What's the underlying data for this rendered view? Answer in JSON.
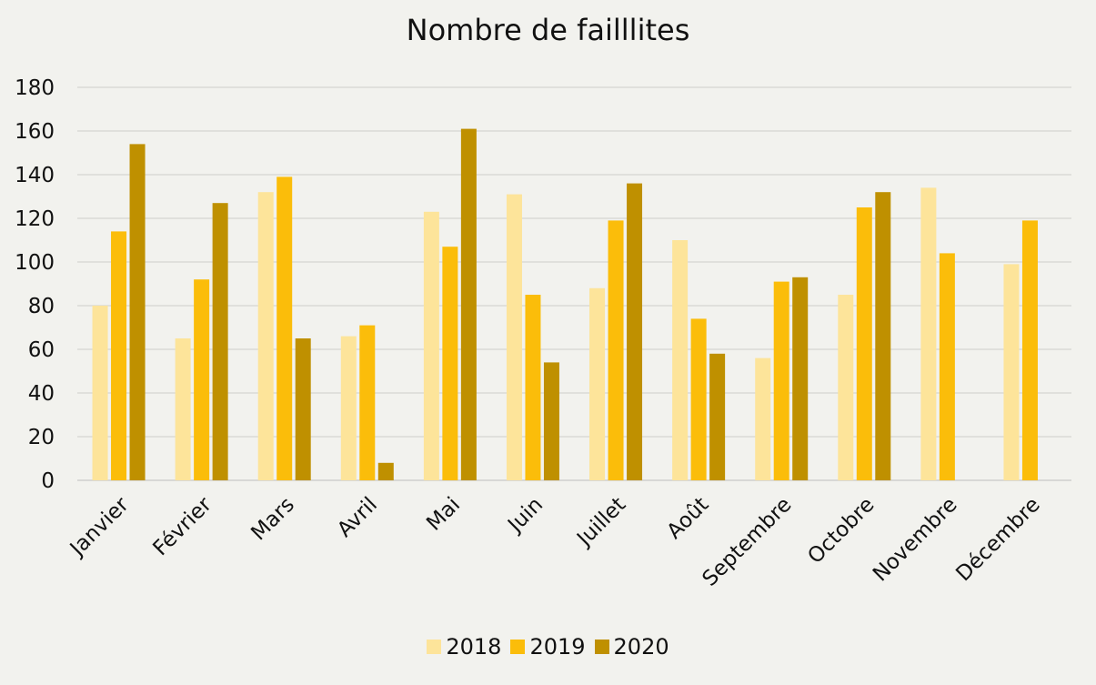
{
  "chart_data": {
    "type": "bar",
    "title": "Nombre de failllites",
    "xlabel": "",
    "ylabel": "",
    "ylim": [
      0,
      180
    ],
    "yticks": [
      0,
      20,
      40,
      60,
      80,
      100,
      120,
      140,
      160,
      180
    ],
    "grid": true,
    "legend_position": "bottom",
    "categories": [
      "Janvier",
      "Février",
      "Mars",
      "Avril",
      "Mai",
      "Juin",
      "Juillet",
      "Août",
      "Septembre",
      "Octobre",
      "Novembre",
      "Décembre"
    ],
    "series": [
      {
        "name": "2018",
        "color": "#fde49a",
        "values": [
          80,
          65,
          132,
          66,
          123,
          131,
          88,
          110,
          56,
          85,
          134,
          99
        ]
      },
      {
        "name": "2019",
        "color": "#fbbd0a",
        "values": [
          114,
          92,
          139,
          71,
          107,
          85,
          119,
          74,
          91,
          125,
          104,
          119
        ]
      },
      {
        "name": "2020",
        "color": "#bf9000",
        "values": [
          154,
          127,
          65,
          8,
          161,
          54,
          136,
          58,
          93,
          132,
          null,
          null
        ]
      }
    ]
  }
}
